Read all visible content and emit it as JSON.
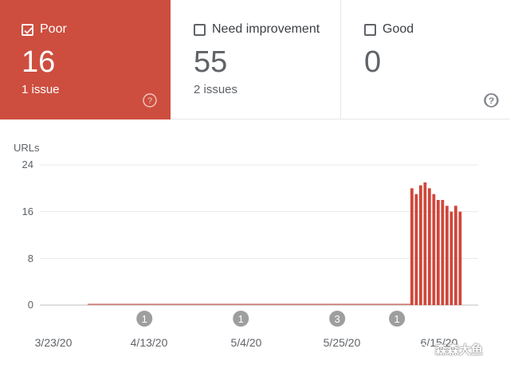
{
  "tiles": [
    {
      "label": "Poor",
      "count": "16",
      "issues": "1 issue",
      "selected": true
    },
    {
      "label": "Need improvement",
      "count": "55",
      "issues": "2 issues",
      "selected": false
    },
    {
      "label": "Good",
      "count": "0",
      "issues": "",
      "selected": false
    }
  ],
  "colors": {
    "accent": "#cd4e3f",
    "bar": "#d0473b",
    "marker": "#9e9e9e"
  },
  "watermark": "森森大鱼",
  "chart_data": {
    "type": "bar",
    "ylabel": "URLs",
    "ylim": [
      0,
      24
    ],
    "yticks": [
      "24",
      "16",
      "8",
      "0"
    ],
    "xtick_labels": [
      "3/23/20",
      "4/13/20",
      "5/4/20",
      "5/25/20",
      "6/15/20"
    ],
    "x_start": "3/23/20",
    "series": [
      {
        "values": [
          20,
          19,
          20.5,
          21,
          20,
          19,
          18,
          18,
          17,
          16,
          17,
          16
        ]
      }
    ],
    "annotations": [
      {
        "label": "1",
        "date": "4/12/20"
      },
      {
        "label": "1",
        "date": "5/3/20"
      },
      {
        "label": "3",
        "date": "5/24/20"
      },
      {
        "label": "1",
        "date": "6/6/20"
      }
    ],
    "grid": true
  }
}
